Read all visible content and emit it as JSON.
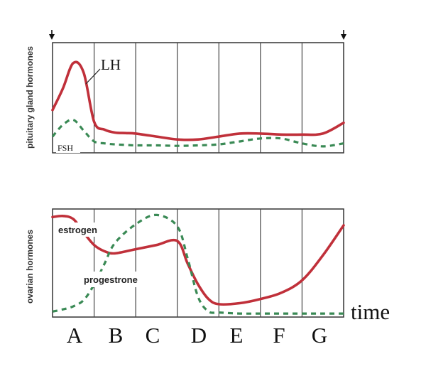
{
  "chart_data": [
    {
      "type": "line",
      "ylabel": "pituitary gland hormones",
      "x": [
        0,
        0.25,
        0.5,
        0.75,
        1,
        1.25,
        1.5,
        1.75,
        2,
        2.5,
        3,
        3.5,
        4,
        4.5,
        5,
        5.5,
        6,
        6.5,
        7
      ],
      "series": [
        {
          "name": "LH",
          "color": "#c0303a",
          "dash": false,
          "values": [
            0.4,
            0.62,
            0.88,
            0.78,
            0.28,
            0.2,
            0.17,
            0.165,
            0.16,
            0.13,
            0.1,
            0.1,
            0.13,
            0.16,
            0.16,
            0.15,
            0.15,
            0.16,
            0.27
          ]
        },
        {
          "name": "FSH",
          "color": "#3a8a55",
          "dash": true,
          "values": [
            0.13,
            0.25,
            0.3,
            0.19,
            0.08,
            0.06,
            0.05,
            0.045,
            0.04,
            0.04,
            0.035,
            0.04,
            0.05,
            0.08,
            0.11,
            0.11,
            0.06,
            0.03,
            0.06
          ]
        }
      ],
      "series_labels": [
        "LH",
        "FSH"
      ]
    },
    {
      "type": "line",
      "ylabel": "ovarian hormones",
      "xlabel": "time",
      "categories": [
        "A",
        "B",
        "C",
        "D",
        "E",
        "F",
        "G"
      ],
      "x": [
        0,
        0.25,
        0.5,
        0.75,
        1,
        1.25,
        1.5,
        2,
        2.5,
        3,
        3.25,
        3.5,
        3.75,
        4,
        4.5,
        5,
        5.5,
        6,
        6.5,
        7
      ],
      "series": [
        {
          "name": "estrogen",
          "color": "#c0303a",
          "dash": false,
          "values": [
            0.95,
            0.96,
            0.93,
            0.8,
            0.68,
            0.62,
            0.6,
            0.64,
            0.68,
            0.72,
            0.5,
            0.3,
            0.16,
            0.11,
            0.12,
            0.16,
            0.22,
            0.34,
            0.58,
            0.87
          ]
        },
        {
          "name": "progestrone",
          "color": "#3a8a55",
          "dash": true,
          "values": [
            0.04,
            0.06,
            0.09,
            0.15,
            0.3,
            0.5,
            0.7,
            0.88,
            0.97,
            0.86,
            0.55,
            0.18,
            0.04,
            0.03,
            0.02,
            0.02,
            0.02,
            0.02,
            0.02,
            0.02
          ]
        }
      ],
      "series_labels": [
        "estrogen",
        "progestrone"
      ]
    }
  ]
}
